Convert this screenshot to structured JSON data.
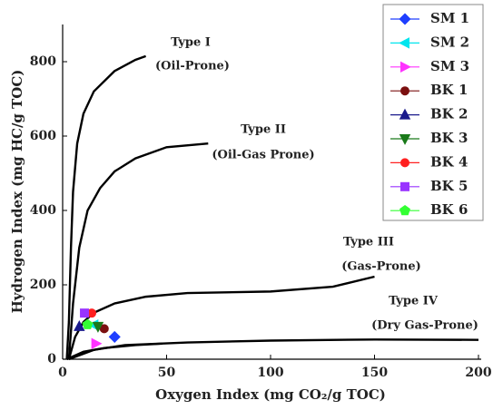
{
  "chart_data": {
    "type": "scatter",
    "x_label": "Oxygen Index (mg CO₂/g TOC)",
    "y_label": "Hydrogen Index (mg HC/g TOC)",
    "xlim": [
      0,
      200
    ],
    "xticks": [
      0,
      50,
      100,
      150,
      200
    ],
    "ylim": [
      0,
      900
    ],
    "yticks": [
      0,
      200,
      400,
      600,
      800
    ],
    "curve_color": "#000000",
    "curves": [
      {
        "name": "Type I",
        "label": "(Oil-Prone)",
        "x": [
          2,
          3,
          4,
          5,
          7,
          10,
          15,
          25,
          35,
          40
        ],
        "values": [
          0,
          100,
          300,
          450,
          580,
          660,
          720,
          775,
          805,
          815
        ]
      },
      {
        "name": "Type II",
        "label": "(Oil-Gas Prone)",
        "x": [
          3,
          5,
          8,
          12,
          18,
          25,
          35,
          50,
          70
        ],
        "values": [
          0,
          150,
          300,
          400,
          460,
          505,
          540,
          570,
          580
        ]
      },
      {
        "name": "Type III",
        "label": "(Gas-Prone)",
        "x": [
          3,
          6,
          10,
          15,
          25,
          40,
          60,
          100,
          130,
          150
        ],
        "values": [
          0,
          60,
          100,
          125,
          150,
          168,
          178,
          182,
          195,
          222
        ]
      },
      {
        "name": "Type IV",
        "label": "(Dry Gas-Prone)",
        "x": [
          3,
          15,
          30,
          60,
          100,
          150,
          200
        ],
        "values": [
          0,
          25,
          38,
          45,
          50,
          53,
          52
        ]
      },
      {
        "x": [
          2,
          10,
          20,
          35,
          48
        ],
        "values": [
          0,
          20,
          30,
          38,
          42
        ]
      }
    ],
    "series": [
      {
        "name": "SM 1",
        "color": "#1f3fff",
        "marker": "diamond",
        "x": [
          25
        ],
        "values": [
          60
        ]
      },
      {
        "name": "SM 2",
        "color": "#00e5ee",
        "marker": "triangle-left",
        "x": [
          15
        ],
        "values": [
          92
        ]
      },
      {
        "name": "SM 3",
        "color": "#ff33ff",
        "marker": "triangle-right",
        "x": [
          16
        ],
        "values": [
          42
        ]
      },
      {
        "name": "BK 1",
        "color": "#7b1010",
        "marker": "circle",
        "x": [
          20
        ],
        "values": [
          82
        ]
      },
      {
        "name": "BK 2",
        "color": "#1a1a8c",
        "marker": "triangle-up",
        "x": [
          8
        ],
        "values": [
          88
        ]
      },
      {
        "name": "BK 3",
        "color": "#1a7a1a",
        "marker": "triangle-down",
        "x": [
          17
        ],
        "values": [
          88
        ]
      },
      {
        "name": "BK 4",
        "color": "#ff2020",
        "marker": "circle",
        "x": [
          14
        ],
        "values": [
          124
        ]
      },
      {
        "name": "BK 5",
        "color": "#9933ff",
        "marker": "square",
        "x": [
          10.5
        ],
        "values": [
          124
        ]
      },
      {
        "name": "BK 6",
        "color": "#33ff33",
        "marker": "pentagon",
        "x": [
          12
        ],
        "values": [
          93
        ]
      }
    ]
  }
}
